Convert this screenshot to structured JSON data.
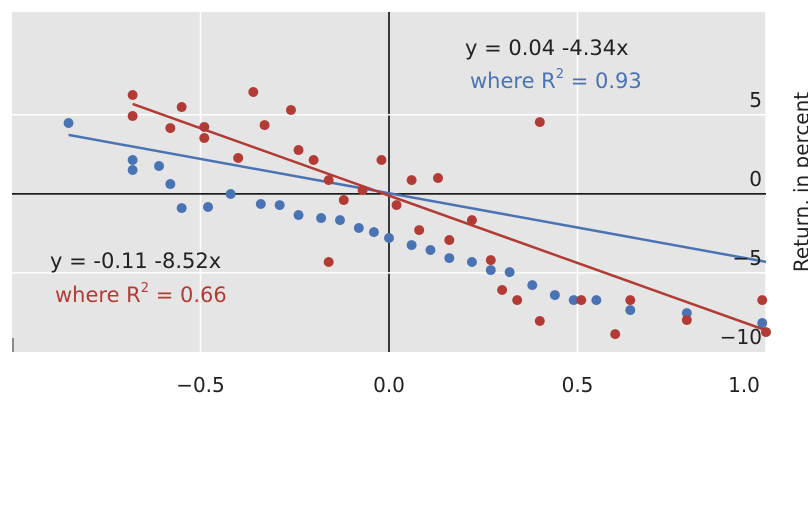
{
  "chart_data": {
    "type": "scatter",
    "y_label": "Return, in percent",
    "xlim": [
      -1.0,
      1.0
    ],
    "ylim": [
      -10,
      11.5
    ],
    "xticks": [
      {
        "value": -0.5,
        "label": "−0.5"
      },
      {
        "value": 0,
        "label": "0.0"
      },
      0.5,
      {
        "value": 1,
        "label": "1.0"
      }
    ],
    "yticks": [
      5,
      0,
      {
        "value": -5,
        "label": "−5"
      },
      {
        "value": -10,
        "label": "−10"
      }
    ],
    "grid": true,
    "series": [
      {
        "name": "blue",
        "color": "#4a73b4",
        "x": [
          -0.85,
          -0.68,
          -0.68,
          -0.61,
          -0.58,
          -0.55,
          -0.48,
          -0.42,
          -0.34,
          -0.29,
          -0.24,
          -0.18,
          -0.13,
          -0.08,
          -0.04,
          0.0,
          0.06,
          0.11,
          0.16,
          0.22,
          0.27,
          0.32,
          0.38,
          0.44,
          0.49,
          0.55,
          0.64,
          0.79,
          0.99
        ],
        "values": [
          4.48,
          2.14,
          1.51,
          1.76,
          0.62,
          -0.9,
          -0.83,
          -0.01,
          -0.64,
          -0.71,
          -1.34,
          -1.53,
          -1.66,
          -2.16,
          -2.42,
          -2.79,
          -3.24,
          -3.55,
          -4.06,
          -4.31,
          -4.82,
          -4.95,
          -5.77,
          -6.4,
          -6.72,
          -6.72,
          -7.35,
          -7.54,
          -8.17
        ],
        "fit": {
          "intercept": 0.04,
          "slope": -4.34
        },
        "annotation": {
          "line1": "y = 0.04 -4.34x",
          "pre": "where R",
          "sup": "2",
          "post": " = 0.93"
        }
      },
      {
        "name": "red",
        "color": "#b23b35",
        "x": [
          -0.68,
          -0.68,
          -0.58,
          -0.55,
          -0.49,
          -0.49,
          -0.4,
          -0.36,
          -0.33,
          -0.26,
          -0.24,
          -0.2,
          -0.16,
          -0.12,
          -0.07,
          -0.02,
          0.02,
          0.06,
          0.08,
          0.13,
          0.16,
          0.22,
          0.27,
          0.3,
          0.34,
          0.4,
          0.4,
          0.51,
          0.6,
          0.64,
          0.79,
          0.99,
          1.0,
          -0.16
        ],
        "values": [
          6.25,
          4.92,
          4.16,
          5.49,
          4.23,
          3.53,
          2.27,
          6.44,
          4.35,
          5.3,
          2.77,
          2.14,
          0.87,
          -0.39,
          0.24,
          2.14,
          -0.71,
          0.87,
          -2.29,
          1.0,
          -2.92,
          -1.66,
          -4.19,
          -6.08,
          -6.72,
          4.54,
          -8.04,
          -6.72,
          -8.87,
          -6.72,
          -7.98,
          -6.72,
          -8.74,
          -4.31
        ],
        "fit": {
          "intercept": -0.11,
          "slope": -8.52
        },
        "annotation": {
          "line1": "y = -0.11 -8.52x",
          "pre": "where R",
          "sup": "2",
          "post": " = 0.66"
        }
      }
    ]
  }
}
